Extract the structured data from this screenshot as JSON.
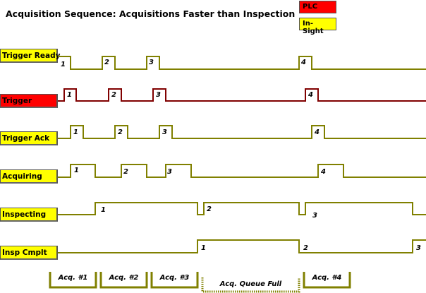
{
  "title": "Acquisition Sequence: Acquisitions Faster than Inspection",
  "legend": [
    {
      "label": "PLC",
      "color": "#ff0000"
    },
    {
      "label": "In-Sight",
      "color": "#ffff00"
    }
  ],
  "colors": {
    "plc_trace": "#800000",
    "insight_trace": "#808000"
  },
  "signals": [
    {
      "name": "Trigger Ready",
      "source": "In-Sight",
      "pulse_labels": [
        "1",
        "2",
        "3",
        "4"
      ]
    },
    {
      "name": "Trigger",
      "source": "PLC",
      "pulse_labels": [
        "1",
        "2",
        "3",
        "4"
      ]
    },
    {
      "name": "Trigger Ack",
      "source": "In-Sight",
      "pulse_labels": [
        "1",
        "2",
        "3",
        "4"
      ]
    },
    {
      "name": "Acquiring",
      "source": "In-Sight",
      "pulse_labels": [
        "1",
        "2",
        "3",
        "4"
      ]
    },
    {
      "name": "Inspecting",
      "source": "In-Sight",
      "pulse_labels": [
        "1",
        "2",
        "3"
      ]
    },
    {
      "name": "Insp Cmplt",
      "source": "In-Sight",
      "pulse_labels": [
        "1",
        "2",
        "3"
      ]
    }
  ],
  "phases": [
    "Acq. #1",
    "Acq. #2",
    "Acq. #3",
    "Acq. Queue Full",
    "Acq. #4"
  ]
}
